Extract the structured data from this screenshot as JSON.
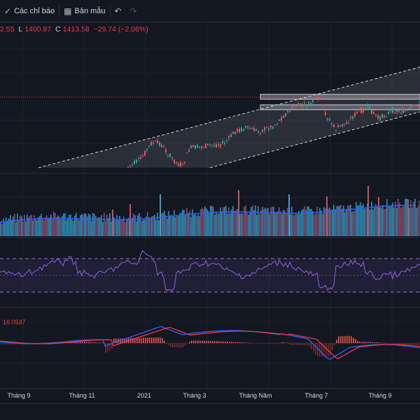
{
  "toolbar": {
    "indicators_label": "Các chỉ báo",
    "templates_label": "Bản mẫu",
    "undo_icon": "undo-icon",
    "redo_icon": "redo-icon"
  },
  "ohlc": {
    "open_partial": "2.55",
    "low_label": "L",
    "low_value": "1400.87",
    "close_label": "C",
    "close_value": "1413.58",
    "change": "−29.74 (−2.06%)"
  },
  "macd": {
    "value": "16.0537"
  },
  "x_axis": {
    "labels": [
      "Tháng 9",
      "Tháng 11",
      "2021",
      "Tháng 3",
      "Tháng Năm",
      "Tháng 7",
      "Tháng 9"
    ]
  },
  "colors": {
    "background": "#131722",
    "up": "#26a69a",
    "down": "#ef5350",
    "volume": "#2e8fb8",
    "rsi": "#7e57c2",
    "macd_line": "#2962ff",
    "signal_line": "#f23645"
  }
}
